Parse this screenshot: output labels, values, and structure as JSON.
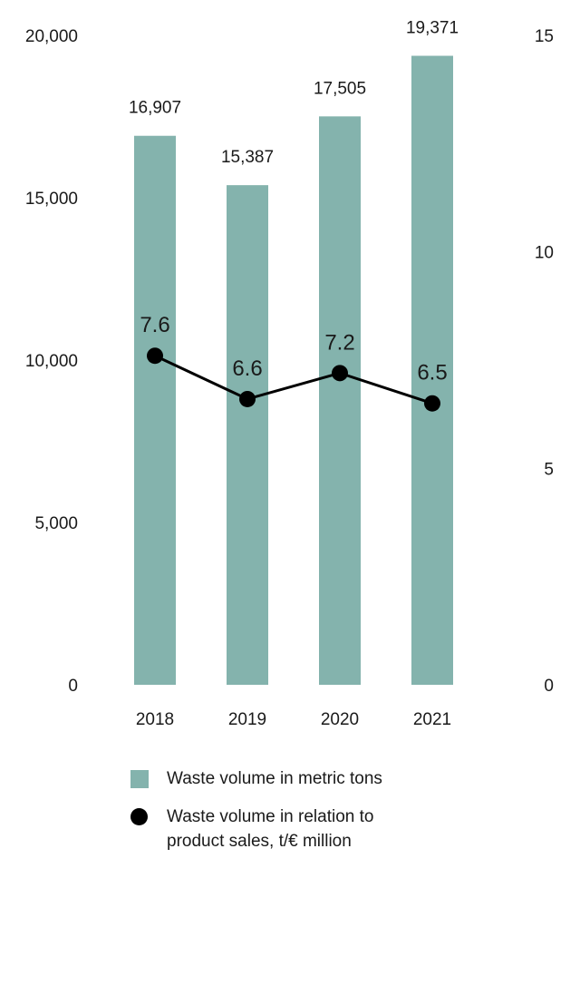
{
  "chart_data": {
    "type": "bar",
    "categories": [
      "2018",
      "2019",
      "2020",
      "2021"
    ],
    "series": [
      {
        "name": "Waste volume in metric tons",
        "kind": "bar",
        "axis": "left",
        "values": [
          16907,
          15387,
          17505,
          19371
        ],
        "labels": [
          "16,907",
          "15,387",
          "17,505",
          "19,371"
        ],
        "color": "#84b3ad"
      },
      {
        "name": "Waste volume in relation to product sales, t/€ million",
        "kind": "line",
        "axis": "right",
        "values": [
          7.6,
          6.6,
          7.2,
          6.5
        ],
        "labels": [
          "7.6",
          "6.6",
          "7.2",
          "6.5"
        ],
        "color": "#000000"
      }
    ],
    "y_left": {
      "ylim": [
        0,
        20000
      ],
      "ticks": [
        0,
        5000,
        10000,
        15000,
        20000
      ],
      "tick_labels": [
        "0",
        "5,000",
        "10,000",
        "15,000",
        "20,000"
      ]
    },
    "y_right": {
      "ylim": [
        0,
        15
      ],
      "ticks": [
        0,
        5,
        10,
        15
      ],
      "tick_labels": [
        "0",
        "5",
        "10",
        "15"
      ]
    },
    "grid": false,
    "legend_position": "bottom-left"
  },
  "legend": {
    "bar_label": "Waste volume in metric tons",
    "line_label_1": "Waste volume in relation to",
    "line_label_2": "product sales, t/€ million"
  }
}
